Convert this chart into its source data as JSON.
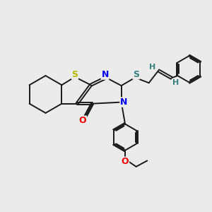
{
  "bg_color": "#ebebeb",
  "bond_color": "#1a1a1a",
  "S_color": "#b8b800",
  "N_color": "#0000ee",
  "O_color": "#ee0000",
  "S2_color": "#3a8080",
  "H_color": "#3a8080",
  "figsize": [
    3.0,
    3.0
  ],
  "dpi": 100,
  "xlim": [
    0,
    10
  ],
  "ylim": [
    0,
    10
  ]
}
